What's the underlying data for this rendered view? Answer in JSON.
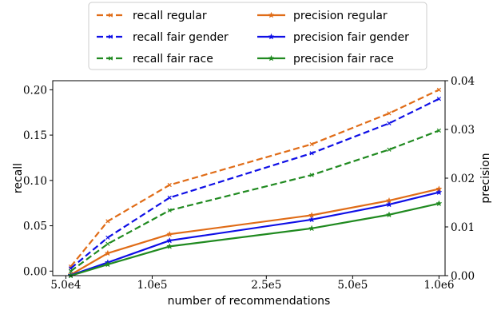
{
  "chart_data": {
    "type": "line",
    "x_ticks": [
      "5.0e4",
      "1.0e5",
      "2.5e5",
      "5.0e5",
      "1.0e6"
    ],
    "x_tick_values": [
      50000,
      100000,
      250000,
      500000,
      1000000
    ],
    "x_scale": "log",
    "xlim": [
      45000,
      1050000
    ],
    "xlabel": "number of recommendations",
    "ylabel_left": "recall",
    "ylabel_right": "precision",
    "ylim_left": [
      -0.005,
      0.21
    ],
    "ylim_right": [
      0.0,
      0.04
    ],
    "y_ticks_left": [
      "0.00",
      "0.05",
      "0.10",
      "0.15",
      "0.20"
    ],
    "y_tick_values_left": [
      0.0,
      0.05,
      0.1,
      0.15,
      0.2
    ],
    "y_ticks_right": [
      "0.00",
      "0.01",
      "0.02",
      "0.03",
      "0.04"
    ],
    "y_tick_values_right": [
      0.0,
      0.01,
      0.02,
      0.03,
      0.04
    ],
    "grid": false,
    "legend_placement": "top-center, outside plot",
    "x": [
      52000,
      70000,
      115000,
      360000,
      670000,
      1000000
    ],
    "series": [
      {
        "name": "recall regular",
        "axis": "left",
        "style": "dashed",
        "marker": "x",
        "color": "#e06c17",
        "values": [
          0.005,
          0.055,
          0.095,
          0.14,
          0.174,
          0.2
        ]
      },
      {
        "name": "recall fair gender",
        "axis": "left",
        "style": "dashed",
        "marker": "x",
        "color": "#0f0fe6",
        "values": [
          0.003,
          0.037,
          0.081,
          0.13,
          0.163,
          0.19
        ]
      },
      {
        "name": "recall fair race",
        "axis": "left",
        "style": "dashed",
        "marker": "x",
        "color": "#208a20",
        "values": [
          0.0,
          0.03,
          0.067,
          0.106,
          0.134,
          0.155
        ]
      },
      {
        "name": "precision regular",
        "axis": "right",
        "style": "solid",
        "marker": "star",
        "color": "#e06c17",
        "values": [
          0.0002,
          0.0046,
          0.0085,
          0.0124,
          0.0154,
          0.0178
        ]
      },
      {
        "name": "precision fair gender",
        "axis": "right",
        "style": "solid",
        "marker": "star",
        "color": "#0f0fe6",
        "values": [
          0.0001,
          0.0027,
          0.0072,
          0.0115,
          0.0146,
          0.0171
        ]
      },
      {
        "name": "precision fair race",
        "axis": "right",
        "style": "solid",
        "marker": "star",
        "color": "#208a20",
        "values": [
          0.0,
          0.0023,
          0.006,
          0.0097,
          0.0125,
          0.0148
        ]
      }
    ]
  }
}
